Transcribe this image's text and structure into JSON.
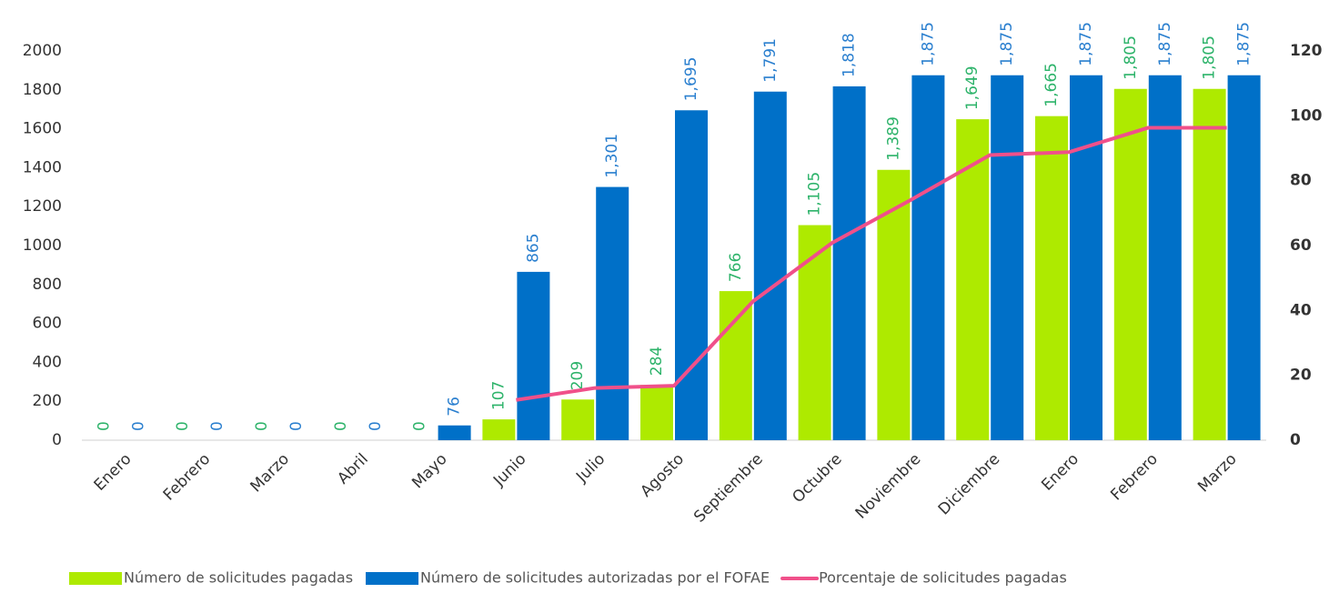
{
  "chart_data": {
    "type": "bar",
    "categories": [
      "Enero",
      "Febrero",
      "Marzo",
      "Abril",
      "Mayo",
      "Junio",
      "Julio",
      "Agosto",
      "Septiembre",
      "Octubre",
      "Noviembre",
      "Diciembre",
      "Enero",
      "Febrero",
      "Marzo"
    ],
    "series": [
      {
        "name": "Número de solicitudes pagadas",
        "color": "#aeea00",
        "label_color": "#2db36a",
        "values": [
          0,
          0,
          0,
          0,
          0,
          107,
          209,
          284,
          766,
          1105,
          1389,
          1649,
          1665,
          1805,
          1805
        ],
        "value_labels": [
          "0",
          "0",
          "0",
          "0",
          "0",
          "107",
          "209",
          "284",
          "766",
          "1,105",
          "1,389",
          "1,649",
          "1,665",
          "1,805",
          "1,805"
        ]
      },
      {
        "name": "Número de solicitudes autorizadas por el FOFAE",
        "color": "#0070c8",
        "label_color": "#2a7fcf",
        "values": [
          0,
          0,
          0,
          0,
          76,
          865,
          1301,
          1695,
          1791,
          1818,
          1875,
          1875,
          1875,
          1875,
          1875
        ],
        "value_labels": [
          "0",
          "0",
          "0",
          "0",
          "76",
          "865",
          "1,301",
          "1,695",
          "1,791",
          "1,818",
          "1,875",
          "1,875",
          "1,875",
          "1,875",
          "1,875"
        ]
      },
      {
        "name": "Porcentaje de solicitudes pagadas",
        "color": "#f0508a",
        "type": "line",
        "axis": "y2",
        "values": [
          null,
          null,
          null,
          null,
          null,
          12.4,
          16.1,
          16.8,
          42.8,
          60.8,
          74.1,
          87.9,
          88.8,
          96.3,
          96.3
        ]
      }
    ],
    "ylim": [
      0,
      2000
    ],
    "yticks": [
      0,
      200,
      400,
      600,
      800,
      1000,
      1200,
      1400,
      1600,
      1800,
      2000
    ],
    "y2lim": [
      0,
      120
    ],
    "y2ticks": [
      0,
      20,
      40,
      60,
      80,
      100,
      120
    ],
    "legend": "bottom"
  }
}
